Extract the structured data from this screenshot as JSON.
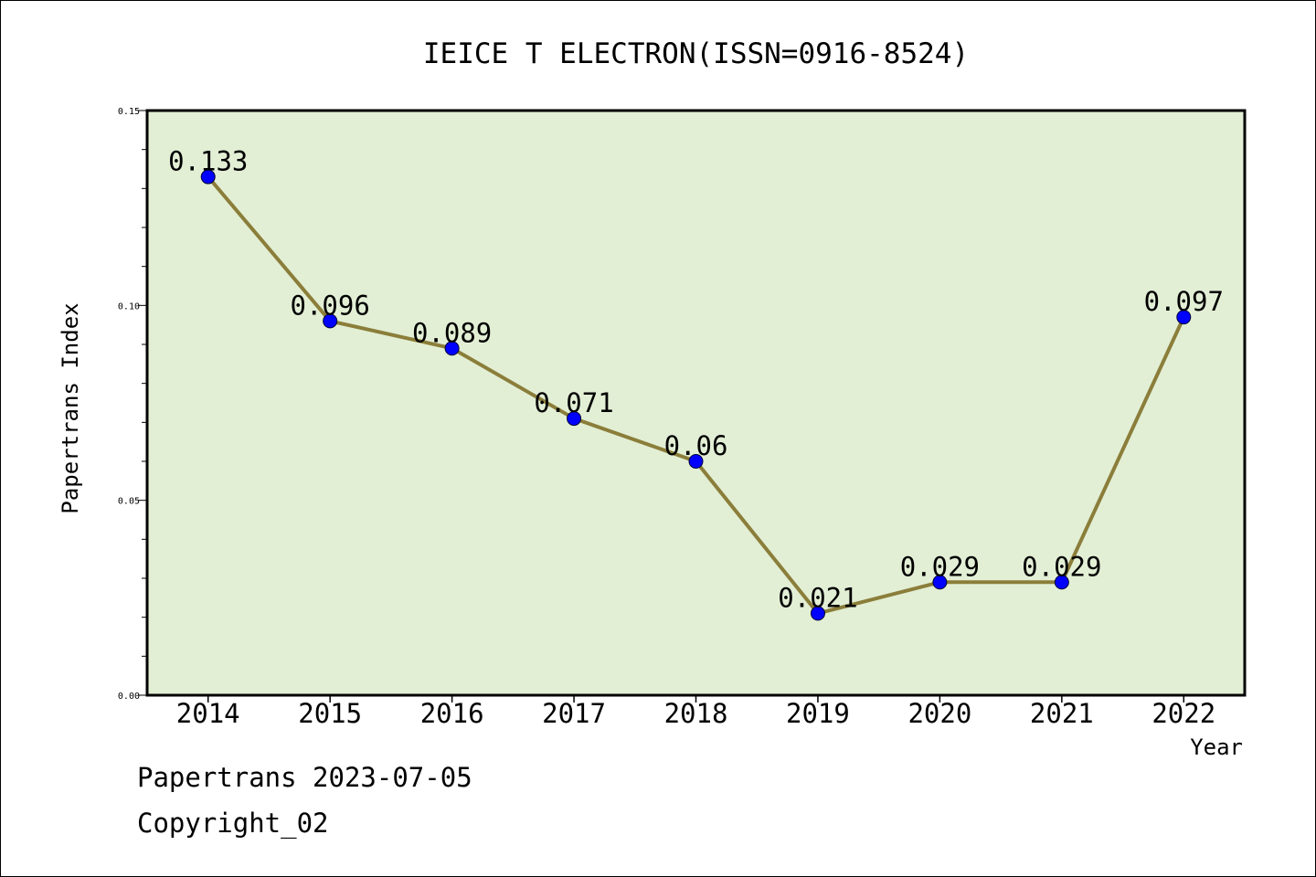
{
  "chart_data": {
    "type": "line",
    "title": "IEICE T ELECTRON(ISSN=0916-8524)",
    "xlabel": "Year",
    "ylabel": "Papertrans Index",
    "categories": [
      "2014",
      "2015",
      "2016",
      "2017",
      "2018",
      "2019",
      "2020",
      "2021",
      "2022"
    ],
    "series": [
      {
        "values": [
          0.133,
          0.096,
          0.089,
          0.071,
          0.06,
          0.021,
          0.029,
          0.029,
          0.097
        ],
        "labels": [
          "0.133",
          "0.096",
          "0.089",
          "0.071",
          "0.06",
          "0.021",
          "0.029",
          "0.029",
          "0.097"
        ]
      }
    ],
    "ylim": [
      0,
      0.15
    ],
    "yticks": [
      "0.00",
      "0.05",
      "0.10",
      "0.15"
    ],
    "grid": false,
    "colors": {
      "plot_background": "#e2efd5",
      "line": "#8b7e3a",
      "marker": "#0000ff"
    }
  },
  "footer": {
    "date_text": "Papertrans 2023-07-05",
    "copyright_text": "Copyright_02"
  }
}
